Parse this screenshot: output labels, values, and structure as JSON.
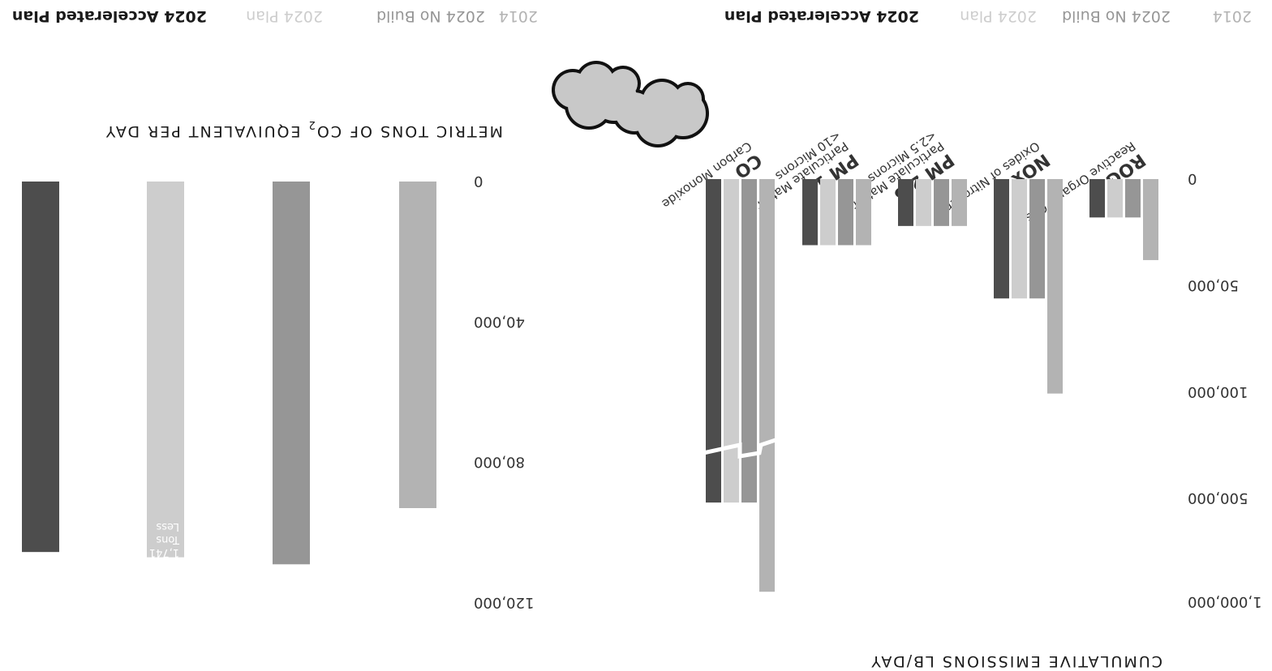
{
  "colors": {
    "s2014": "#b3b3b3",
    "noBuild": "#969696",
    "plan": "#cdcdcd",
    "accelerated": "#4d4d4d",
    "outline": "#111111",
    "cloudFill": "#c8c8c8"
  },
  "chart_data": [
    {
      "type": "bar",
      "title": "CUMULATIVE EMISSIONS LB/DAY",
      "icon": "smog-cloud-icon",
      "axis_break": true,
      "yticks": [
        "0",
        "50,000",
        "100,000",
        "500,000",
        "1,000,000"
      ],
      "categories": [
        {
          "code": "ROG",
          "name": "Reactive Organic Gases"
        },
        {
          "code": "NOx",
          "name": "Oxides of Nitrogen"
        },
        {
          "code": "PM 2.5",
          "name": "Particulate Matter",
          "name2": "<2.5 Microns"
        },
        {
          "code": "PM 10",
          "name": "Particulate Matter",
          "name2": "<10 Microns"
        },
        {
          "code": "CO",
          "name": "Carbon Monoxide"
        }
      ],
      "series": [
        {
          "name": "2014",
          "color_key": "s2014",
          "values": [
            38000,
            105000,
            22000,
            31000,
            950000
          ]
        },
        {
          "name": "2024 No Build",
          "color_key": "noBuild",
          "values": [
            18000,
            56000,
            22000,
            31000,
            520000
          ]
        },
        {
          "name": "2024 Plan",
          "color_key": "plan",
          "values": [
            18000,
            56000,
            22000,
            31000,
            520000
          ]
        },
        {
          "name": "2024 Accelerated Plan",
          "color_key": "accelerated",
          "values": [
            18000,
            56000,
            22000,
            31000,
            520000
          ]
        }
      ]
    },
    {
      "type": "bar",
      "title": "METRIC TONS OF CO",
      "title_sub": "2",
      "title_rest": " EQUIVALENT PER DAY",
      "ylim": [
        0,
        120000
      ],
      "yticks": [
        "0",
        "40,000",
        "80,000",
        "120,000"
      ],
      "categories": [
        "2014",
        "2024 No Build",
        "2024 Plan",
        "2024 Accelerated Plan"
      ],
      "values": [
        93000,
        109000,
        107000,
        105500
      ],
      "color_keys": [
        "s2014",
        "noBuild",
        "plan",
        "accelerated"
      ],
      "annotation": {
        "line1": "1,741",
        "line2": "Tons",
        "line3": "Less"
      }
    }
  ]
}
